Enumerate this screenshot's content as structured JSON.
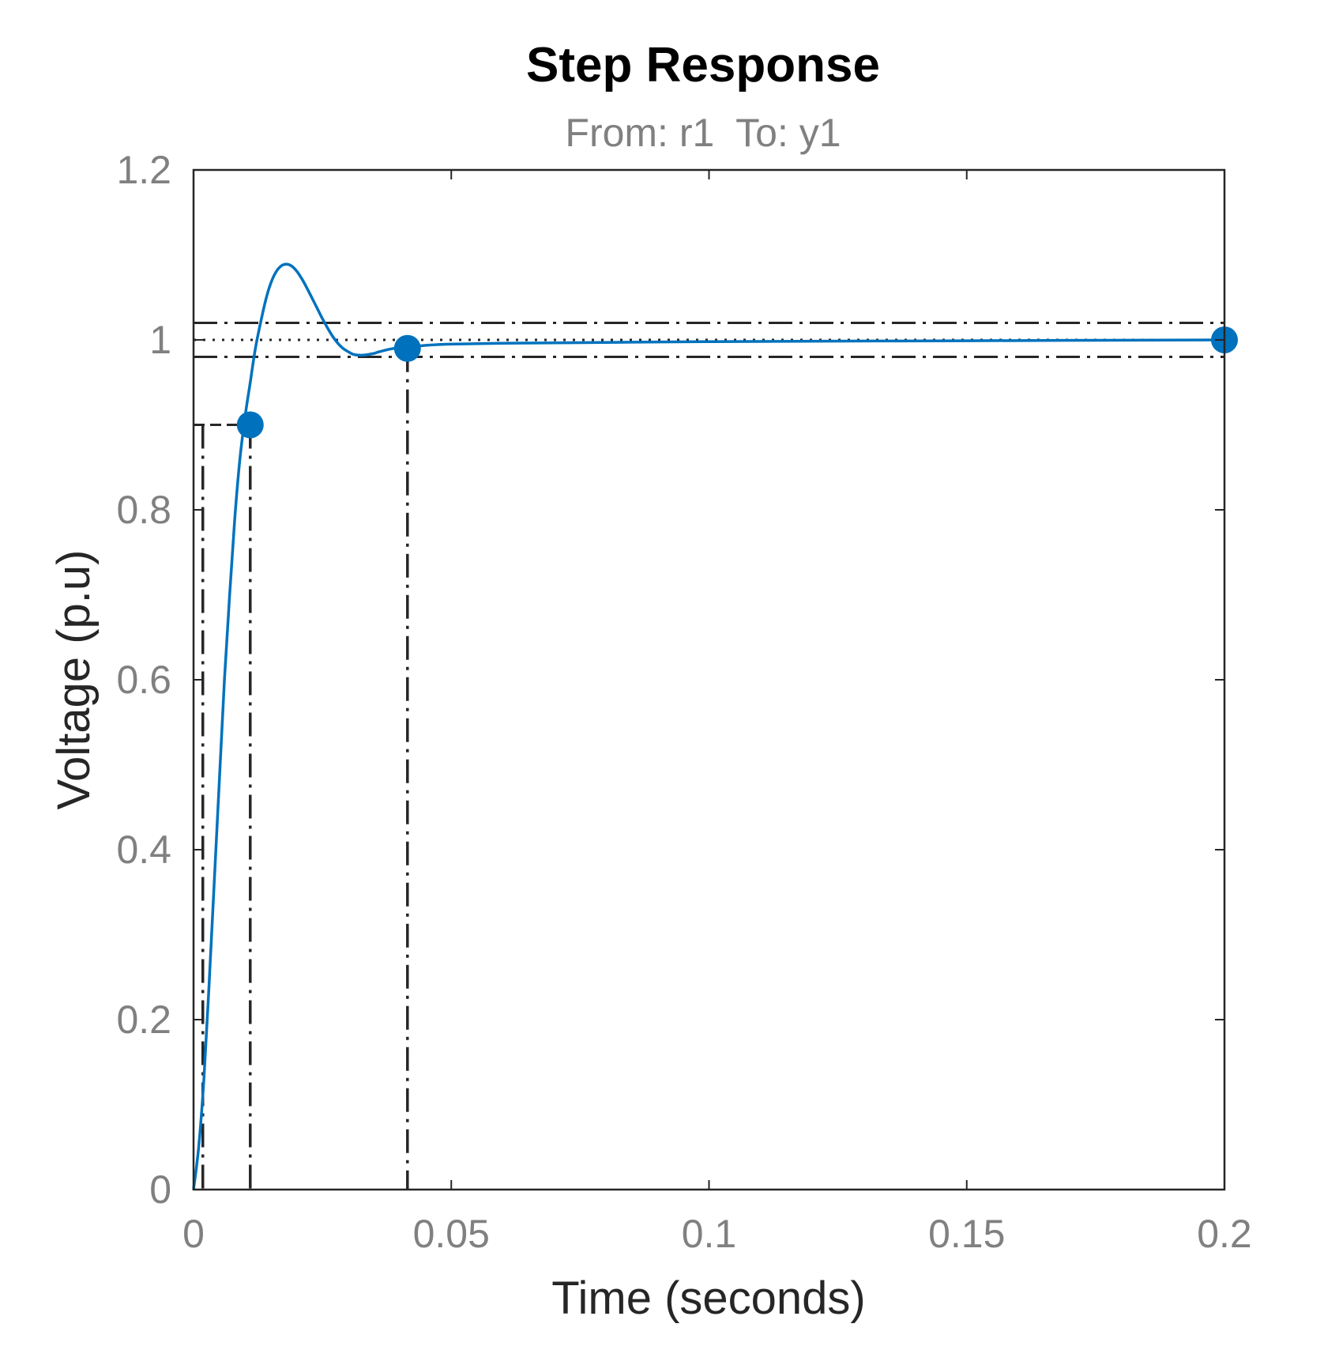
{
  "chart_data": {
    "type": "line",
    "title": "Step Response",
    "subtitle": "From: r1  To: y1",
    "xlabel": "Time (seconds)",
    "ylabel": "Voltage (p.u)",
    "xlim": [
      0,
      0.2
    ],
    "ylim": [
      0,
      1.2
    ],
    "xticks": [
      0,
      0.05,
      0.1,
      0.15,
      0.2
    ],
    "xtick_labels": [
      "0",
      "0.05",
      "0.1",
      "0.15",
      "0.2"
    ],
    "yticks": [
      0,
      0.2,
      0.4,
      0.6,
      0.8,
      1.0,
      1.2
    ],
    "ytick_labels": [
      "0",
      "0.2",
      "0.4",
      "0.6",
      "0.8",
      "1",
      "1.2"
    ],
    "grid": false,
    "line_color": "#0072bd",
    "series": [
      {
        "x": [
          0,
          0.001,
          0.002,
          0.003,
          0.004,
          0.005,
          0.006,
          0.007,
          0.008,
          0.009,
          0.01,
          0.011,
          0.012,
          0.013,
          0.014,
          0.015,
          0.016,
          0.017,
          0.018,
          0.019,
          0.02,
          0.021,
          0.022,
          0.023,
          0.024,
          0.025,
          0.026,
          0.027,
          0.028,
          0.029,
          0.03,
          0.031,
          0.032,
          0.033,
          0.034,
          0.035,
          0.036,
          0.038,
          0.04,
          0.042,
          0.044,
          0.046,
          0.05,
          0.06,
          0.08,
          0.1,
          0.15,
          0.2
        ],
        "y": [
          0,
          0.05,
          0.13,
          0.24,
          0.36,
          0.48,
          0.6,
          0.7,
          0.79,
          0.86,
          0.91,
          0.95,
          0.99,
          1.02,
          1.047,
          1.067,
          1.08,
          1.087,
          1.089,
          1.087,
          1.081,
          1.072,
          1.061,
          1.049,
          1.037,
          1.025,
          1.014,
          1.004,
          0.996,
          0.99,
          0.986,
          0.983,
          0.982,
          0.982,
          0.983,
          0.984,
          0.986,
          0.989,
          0.991,
          0.992,
          0.993,
          0.994,
          0.995,
          0.996,
          0.997,
          0.998,
          0.999,
          1.0
        ]
      }
    ],
    "markers": [
      {
        "x": 0.011,
        "y": 0.9
      },
      {
        "x": 0.0415,
        "y": 0.99
      },
      {
        "x": 0.2,
        "y": 1.0
      }
    ],
    "reference_lines": {
      "horizontal_dashdot": [
        1.02,
        0.98
      ],
      "horizontal_dotted": [
        1.0
      ],
      "vertical_dashdot": [
        0.0018,
        0.011,
        0.0415
      ],
      "rise_level": 0.9
    }
  }
}
